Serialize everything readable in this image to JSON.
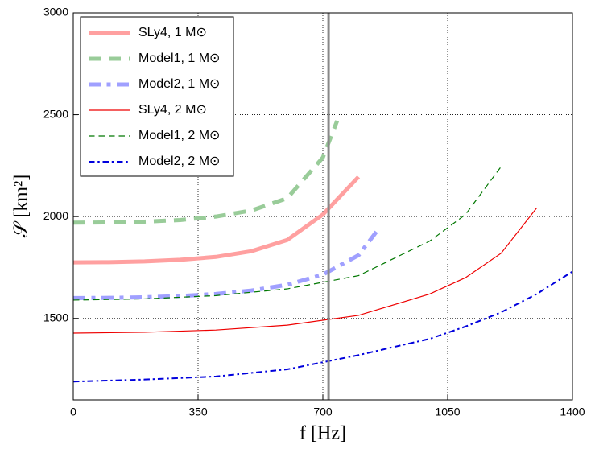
{
  "chart_data": {
    "type": "line",
    "xlabel": "f [Hz]",
    "ylabel": "𝒮 [km²]",
    "xlim": [
      0,
      1400
    ],
    "xticks": [
      0,
      350,
      700,
      1050,
      1400
    ],
    "ylim": [
      1100,
      3000
    ],
    "yticks": [
      1500,
      2000,
      2500,
      3000
    ],
    "grid": true,
    "legend": "upper left",
    "vline": 716,
    "vline_color": "#888888",
    "series": [
      {
        "name": "SLy4, 1 M⊙",
        "color": "#ffa0a0",
        "linestyle": "solid",
        "linewidth": 5,
        "x": [
          0,
          100,
          200,
          300,
          400,
          500,
          600,
          700,
          800
        ],
        "values": [
          1775,
          1776,
          1780,
          1788,
          1802,
          1830,
          1885,
          2010,
          2195
        ]
      },
      {
        "name": "Model1, 1 M⊙",
        "color": "#99cc99",
        "linestyle": "dashed",
        "linewidth": 5,
        "x": [
          0,
          100,
          200,
          300,
          400,
          500,
          600,
          700,
          740
        ],
        "values": [
          1970,
          1971,
          1975,
          1983,
          2000,
          2030,
          2090,
          2290,
          2470
        ]
      },
      {
        "name": "Model2, 1 M⊙",
        "color": "#a0a0ff",
        "linestyle": "dashdot",
        "linewidth": 5,
        "x": [
          0,
          100,
          200,
          300,
          400,
          500,
          600,
          700,
          800,
          850
        ],
        "values": [
          1600,
          1601,
          1604,
          1610,
          1620,
          1637,
          1665,
          1715,
          1810,
          1925
        ]
      },
      {
        "name": "SLy4, 2 M⊙",
        "color": "#ee0000",
        "linestyle": "solid",
        "linewidth": 1.2,
        "x": [
          0,
          200,
          400,
          600,
          800,
          1000,
          1100,
          1200,
          1300
        ],
        "values": [
          1428,
          1432,
          1443,
          1467,
          1515,
          1620,
          1700,
          1820,
          2043
        ]
      },
      {
        "name": "Model1, 2 M⊙",
        "color": "#007700",
        "linestyle": "dashed",
        "linewidth": 1.2,
        "x": [
          0,
          200,
          400,
          600,
          800,
          1000,
          1100,
          1204
        ],
        "values": [
          1590,
          1596,
          1612,
          1645,
          1710,
          1880,
          2010,
          2255
        ]
      },
      {
        "name": "Model2, 2 M⊙",
        "color": "#0000dd",
        "linestyle": "dashdot",
        "linewidth": 2,
        "x": [
          0,
          200,
          400,
          600,
          800,
          1000,
          1100,
          1200,
          1300,
          1400
        ],
        "values": [
          1190,
          1200,
          1215,
          1250,
          1320,
          1400,
          1460,
          1530,
          1620,
          1730
        ]
      }
    ]
  }
}
